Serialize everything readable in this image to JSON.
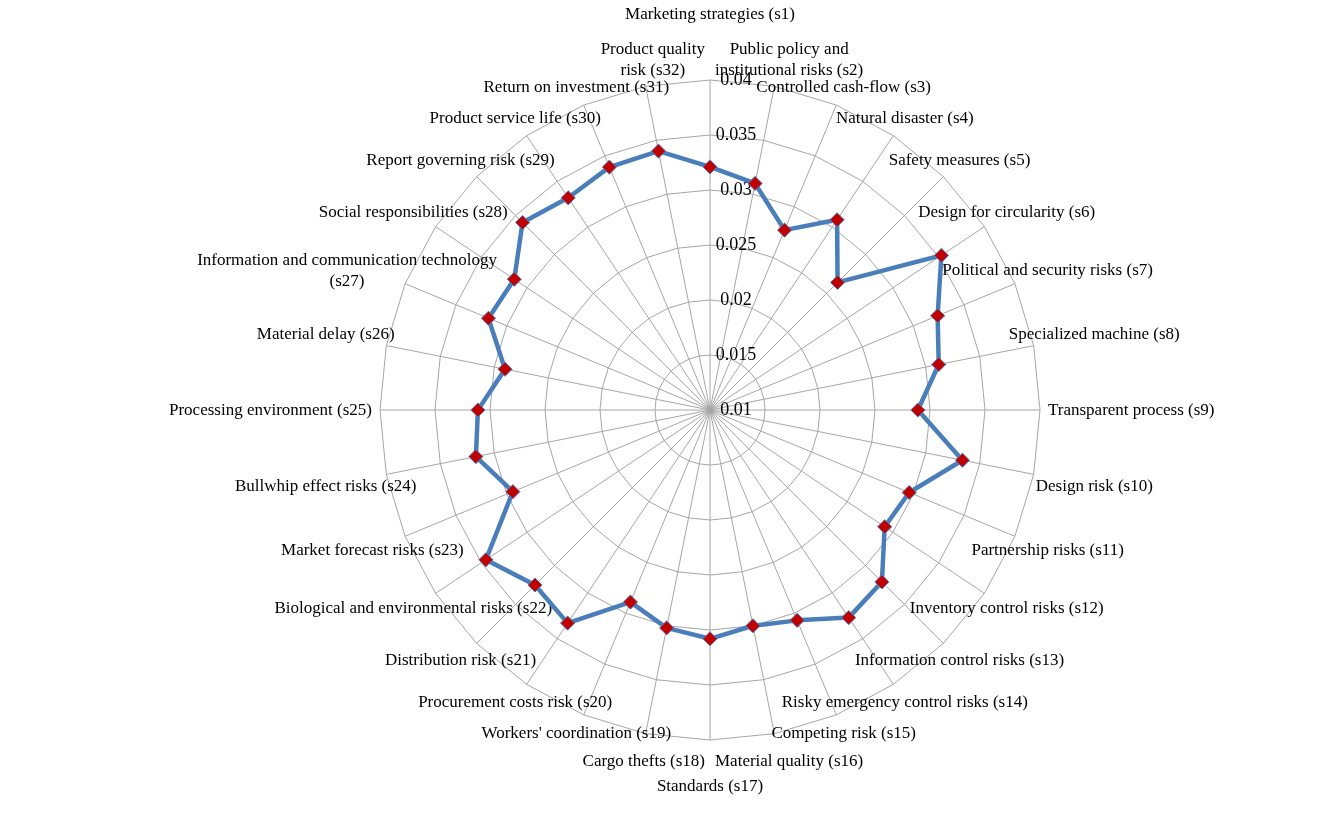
{
  "chart_data": {
    "type": "radar",
    "categories": [
      "Marketing strategies (s1)",
      "Public policy and\ninstitutional risks (s2)",
      "Controlled cash-flow (s3)",
      "Natural disaster (s4)",
      "Safety measures (s5)",
      "Design for circularity (s6)",
      "Political and security risks (s7)",
      "Specialized machine (s8)",
      "Transparent process (s9)",
      "Design risk (s10)",
      "Partnership risks (s11)",
      "Inventory control risks (s12)",
      "Information control risks (s13)",
      "Risky emergency control risks (s14)",
      "Competing risk (s15)",
      "Material quality (s16)",
      "Standards (s17)",
      "Cargo thefts (s18)",
      "Workers' coordination (s19)",
      "Procurement costs risk (s20)",
      "Distribution risk (s21)",
      "Biological and environmental risks (s22)",
      "Market forecast risks (s23)",
      "Bullwhip effect risks (s24)",
      "Processing environment (s25)",
      "Material delay (s26)",
      "Information and communication technology\n(s27)",
      "Social responsibilities (s28)",
      "Report governing risk (s29)",
      "Product service life (s30)",
      "Return on investment (s31)",
      "Product quality\nrisk (s32)"
    ],
    "series": [
      {
        "color": "#4a7ebb",
        "values": [
          0.0321,
          0.031,
          0.0277,
          0.0308,
          0.0264,
          0.0353,
          0.0324,
          0.0312,
          0.0289,
          0.0334,
          0.0296,
          0.0291,
          0.0321,
          0.0327,
          0.0307,
          0.03,
          0.0308,
          0.0302,
          0.0289,
          0.0333,
          0.0325,
          0.0345,
          0.0294,
          0.0317,
          0.0311,
          0.029,
          0.0318,
          0.0314,
          0.0341,
          0.0332,
          0.0339,
          0.034
        ]
      }
    ],
    "ylim": [
      0.01,
      0.04
    ],
    "yticks": [
      0.01,
      0.015,
      0.02,
      0.025,
      0.03,
      0.035,
      0.04
    ],
    "grid": true,
    "marker": "diamond",
    "line_style": "solid"
  }
}
